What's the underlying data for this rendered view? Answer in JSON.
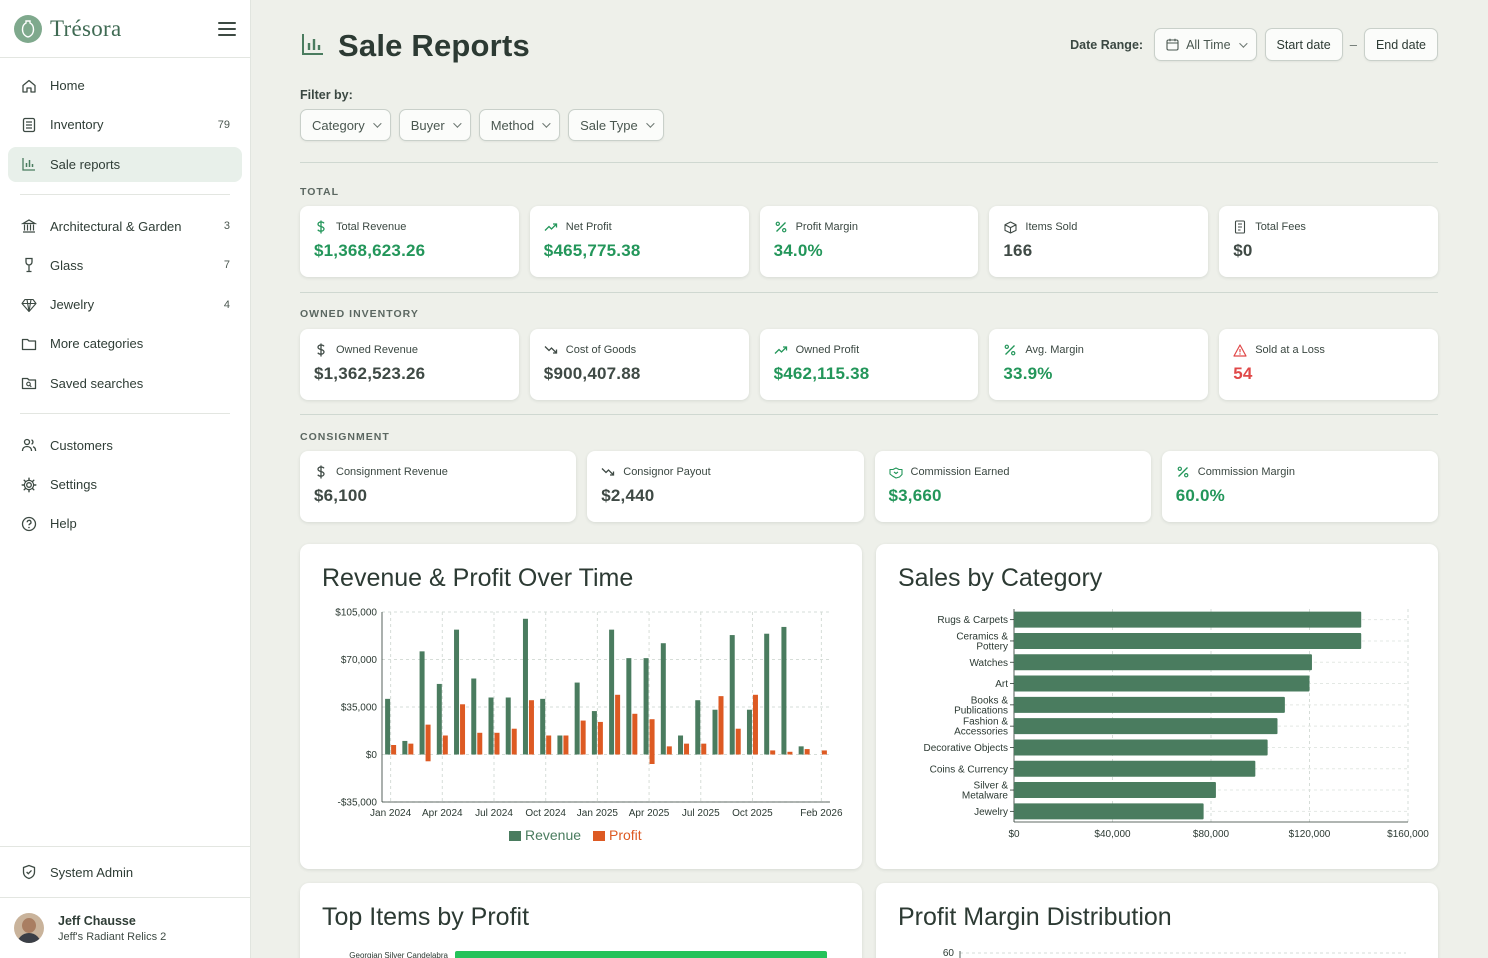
{
  "brand": {
    "name": "Trésora"
  },
  "nav": {
    "primary": [
      {
        "label": "Home",
        "icon": "home-icon"
      },
      {
        "label": "Inventory",
        "icon": "inventory-icon",
        "count": "79"
      },
      {
        "label": "Sale reports",
        "icon": "bar-chart-icon",
        "active": true
      }
    ],
    "categories": [
      {
        "label": "Architectural & Garden",
        "icon": "building-icon",
        "count": "3"
      },
      {
        "label": "Glass",
        "icon": "wine-glass-icon",
        "count": "7"
      },
      {
        "label": "Jewelry",
        "icon": "gem-icon",
        "count": "4"
      },
      {
        "label": "More categories",
        "icon": "folder-icon"
      },
      {
        "label": "Saved searches",
        "icon": "saved-search-icon"
      }
    ],
    "secondary": [
      {
        "label": "Customers",
        "icon": "users-icon"
      },
      {
        "label": "Settings",
        "icon": "gear-icon"
      },
      {
        "label": "Help",
        "icon": "help-icon"
      }
    ],
    "system_admin": "System Admin"
  },
  "user": {
    "name": "Jeff Chausse",
    "shop": "Jeff's Radiant Relics 2"
  },
  "page": {
    "title": "Sale Reports",
    "date_range_label": "Date Range:",
    "date_range_value": "All Time",
    "start_date": "Start date",
    "end_date": "End date",
    "date_separator": "–",
    "filter_label": "Filter by:",
    "filters": [
      "Category",
      "Buyer",
      "Method",
      "Sale Type"
    ]
  },
  "sections": {
    "total": {
      "label": "TOTAL",
      "cards": [
        {
          "label": "Total Revenue",
          "value": "$1,368,623.26",
          "icon": "dollar-icon",
          "tone": "green"
        },
        {
          "label": "Net Profit",
          "value": "$465,775.38",
          "icon": "trending-up-icon",
          "tone": "green"
        },
        {
          "label": "Profit Margin",
          "value": "34.0%",
          "icon": "percent-icon",
          "tone": "green"
        },
        {
          "label": "Items Sold",
          "value": "166",
          "icon": "box-icon",
          "tone": "gray"
        },
        {
          "label": "Total Fees",
          "value": "$0",
          "icon": "receipt-icon",
          "tone": "gray"
        }
      ]
    },
    "owned": {
      "label": "OWNED INVENTORY",
      "cards": [
        {
          "label": "Owned Revenue",
          "value": "$1,362,523.26",
          "icon": "dollar-icon",
          "tone": "gray"
        },
        {
          "label": "Cost of Goods",
          "value": "$900,407.88",
          "icon": "trending-down-icon",
          "tone": "gray"
        },
        {
          "label": "Owned Profit",
          "value": "$462,115.38",
          "icon": "trending-up-icon",
          "tone": "green"
        },
        {
          "label": "Avg. Margin",
          "value": "33.9%",
          "icon": "percent-icon",
          "tone": "green"
        },
        {
          "label": "Sold at a Loss",
          "value": "54",
          "icon": "warning-icon",
          "tone": "red"
        }
      ]
    },
    "consignment": {
      "label": "CONSIGNMENT",
      "cards": [
        {
          "label": "Consignment Revenue",
          "value": "$6,100",
          "icon": "dollar-icon",
          "tone": "gray"
        },
        {
          "label": "Consignor Payout",
          "value": "$2,440",
          "icon": "trending-down-icon",
          "tone": "gray"
        },
        {
          "label": "Commission Earned",
          "value": "$3,660",
          "icon": "handshake-icon",
          "tone": "green"
        },
        {
          "label": "Commission Margin",
          "value": "60.0%",
          "icon": "percent-icon",
          "tone": "green"
        }
      ]
    }
  },
  "colors": {
    "accent": "#4a7c5f",
    "profit": "#dd5a23",
    "positive": "#23965a",
    "negative": "#e04848",
    "top_items_bar": "#25c25a"
  },
  "chart_data": [
    {
      "type": "bar",
      "title": "Revenue & Profit Over Time",
      "x_tick_labels": [
        "Jan 2024",
        "Apr 2024",
        "Jul 2024",
        "Oct 2024",
        "Jan 2025",
        "Apr 2025",
        "Jul 2025",
        "Oct 2025",
        "Feb 2026"
      ],
      "y_tick_labels": [
        "$105,000",
        "$70,000",
        "$35,000",
        "$0",
        "-$35,000"
      ],
      "ylim": [
        -35000,
        105000
      ],
      "y_ticks": [
        105000,
        70000,
        35000,
        0,
        -35000
      ],
      "categories": [
        "2024-01",
        "2024-02",
        "2024-03",
        "2024-04",
        "2024-05",
        "2024-06",
        "2024-07",
        "2024-08",
        "2024-09",
        "2024-10",
        "2024-11",
        "2024-12",
        "2025-01",
        "2025-02",
        "2025-03",
        "2025-04",
        "2025-05",
        "2025-06",
        "2025-07",
        "2025-08",
        "2025-09",
        "2025-10",
        "2025-11",
        "2025-12",
        "2026-01",
        "2026-02"
      ],
      "series": [
        {
          "name": "Revenue",
          "color": "#4a7c5f",
          "values": [
            41000,
            10000,
            76000,
            52000,
            92000,
            56000,
            42000,
            42000,
            100000,
            41000,
            14000,
            53000,
            32000,
            92000,
            71000,
            71000,
            82000,
            14000,
            40000,
            33000,
            88000,
            33000,
            89000,
            94000,
            6000,
            0
          ]
        },
        {
          "name": "Profit",
          "color": "#dd5a23",
          "values": [
            7000,
            8000,
            22000,
            14000,
            37000,
            16000,
            16000,
            19000,
            40000,
            14000,
            14000,
            25000,
            24000,
            44000,
            30000,
            26000,
            6000,
            8000,
            8000,
            43000,
            19000,
            44000,
            3000,
            2000,
            4000,
            3000
          ]
        }
      ],
      "negative_profit": [
        {
          "category": "2024-03",
          "value": -5000
        },
        {
          "category": "2025-04",
          "value": -7000
        }
      ],
      "legend": [
        "Revenue",
        "Profit"
      ],
      "legend_position": "bottom",
      "grid": true
    },
    {
      "type": "bar",
      "orientation": "horizontal",
      "title": "Sales by Category",
      "categories": [
        "Rugs & Carpets",
        "Ceramics & Pottery",
        "Watches",
        "Art",
        "Books & Publications",
        "Fashion & Accessories",
        "Decorative Objects",
        "Coins & Currency",
        "Silver & Metalware",
        "Jewelry"
      ],
      "values": [
        141000,
        141000,
        121000,
        120000,
        110000,
        107000,
        103000,
        98000,
        82000,
        77000
      ],
      "x_tick_labels": [
        "$0",
        "$40,000",
        "$80,000",
        "$120,000",
        "$160,000"
      ],
      "xlim": [
        0,
        160000
      ],
      "color": "#4a7c5f",
      "grid": true
    },
    {
      "type": "bar",
      "orientation": "horizontal",
      "title": "Top Items by Profit",
      "categories": [
        "Georgian Silver Candelabra"
      ],
      "color": "#25c25a"
    },
    {
      "type": "bar",
      "title": "Profit Margin Distribution",
      "y_tick_labels": [
        "60"
      ]
    }
  ]
}
